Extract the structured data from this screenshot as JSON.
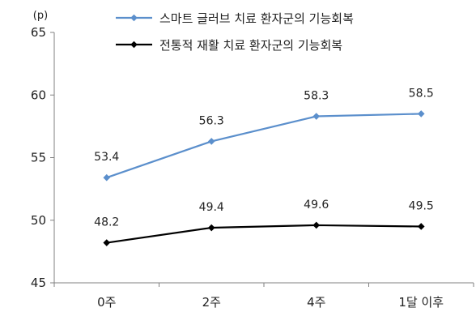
{
  "chart_data": {
    "type": "line",
    "title": "",
    "xlabel": "",
    "ylabel": "",
    "y_unit_label": "(p)",
    "categories": [
      "0주",
      "2주",
      "4주",
      "1달 이후"
    ],
    "ylim": [
      45,
      65
    ],
    "yticks": [
      45,
      50,
      55,
      60,
      65
    ],
    "grid": false,
    "legend_position": "top-right",
    "series": [
      {
        "name": "스마트 글러브 치료 환자군의 기능회복",
        "color": "#5b8fcc",
        "values": [
          53.4,
          56.3,
          58.3,
          58.5
        ],
        "labels": [
          "53.4",
          "56.3",
          "58.3",
          "58.5"
        ]
      },
      {
        "name": "전통적 재활 치료 환자군의 기능회복",
        "color": "#000000",
        "values": [
          48.2,
          49.4,
          49.6,
          49.5
        ],
        "labels": [
          "48.2",
          "49.4",
          "49.6",
          "49.5"
        ]
      }
    ]
  }
}
